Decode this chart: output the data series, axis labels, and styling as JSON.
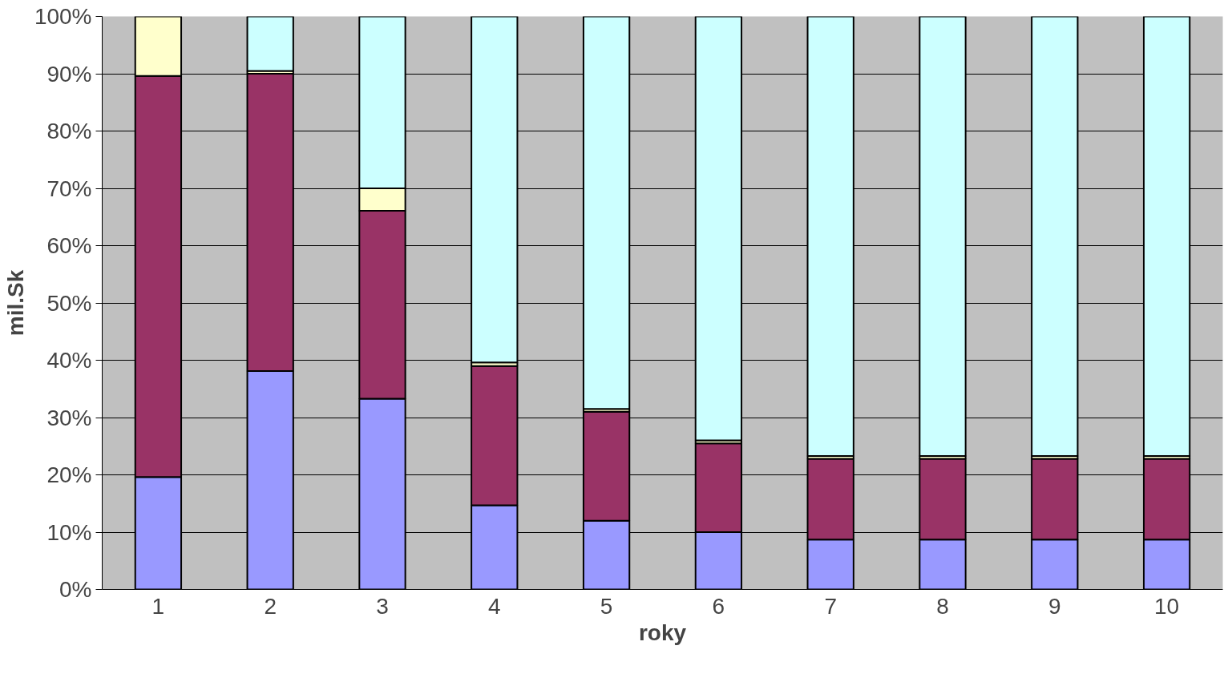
{
  "chart_data": {
    "type": "bar",
    "stacked": true,
    "xlabel": "roky",
    "ylabel": "mil.Sk",
    "categories": [
      "1",
      "2",
      "3",
      "4",
      "5",
      "6",
      "7",
      "8",
      "9",
      "10"
    ],
    "series": [
      {
        "color": "#9999ff",
        "values": [
          19.6,
          38.1,
          33.3,
          14.7,
          12.0,
          10.0,
          8.7,
          8.7,
          8.7,
          8.7
        ]
      },
      {
        "color": "#993366",
        "values": [
          70.0,
          51.9,
          32.8,
          24.3,
          19.0,
          15.5,
          14.1,
          14.1,
          14.1,
          14.1
        ]
      },
      {
        "color": "#ffffcc",
        "values": [
          10.4,
          0.5,
          3.9,
          0.6,
          0.5,
          0.5,
          0.5,
          0.5,
          0.5,
          0.5
        ]
      },
      {
        "color": "#ccffff",
        "values": [
          null,
          9.5,
          30.0,
          60.4,
          68.5,
          74.0,
          76.7,
          76.7,
          76.7,
          76.7
        ]
      }
    ],
    "ylim": [
      0,
      100
    ],
    "yticks": [
      {
        "value": 0,
        "label": "0%"
      },
      {
        "value": 10,
        "label": "10%"
      },
      {
        "value": 20,
        "label": "20%"
      },
      {
        "value": 30,
        "label": "30%"
      },
      {
        "value": 40,
        "label": "40%"
      },
      {
        "value": 50,
        "label": "50%"
      },
      {
        "value": 60,
        "label": "60%"
      },
      {
        "value": 70,
        "label": "70%"
      },
      {
        "value": 80,
        "label": "80%"
      },
      {
        "value": 90,
        "label": "90%"
      },
      {
        "value": 100,
        "label": "100%"
      }
    ],
    "grid": "y",
    "legend": false
  }
}
